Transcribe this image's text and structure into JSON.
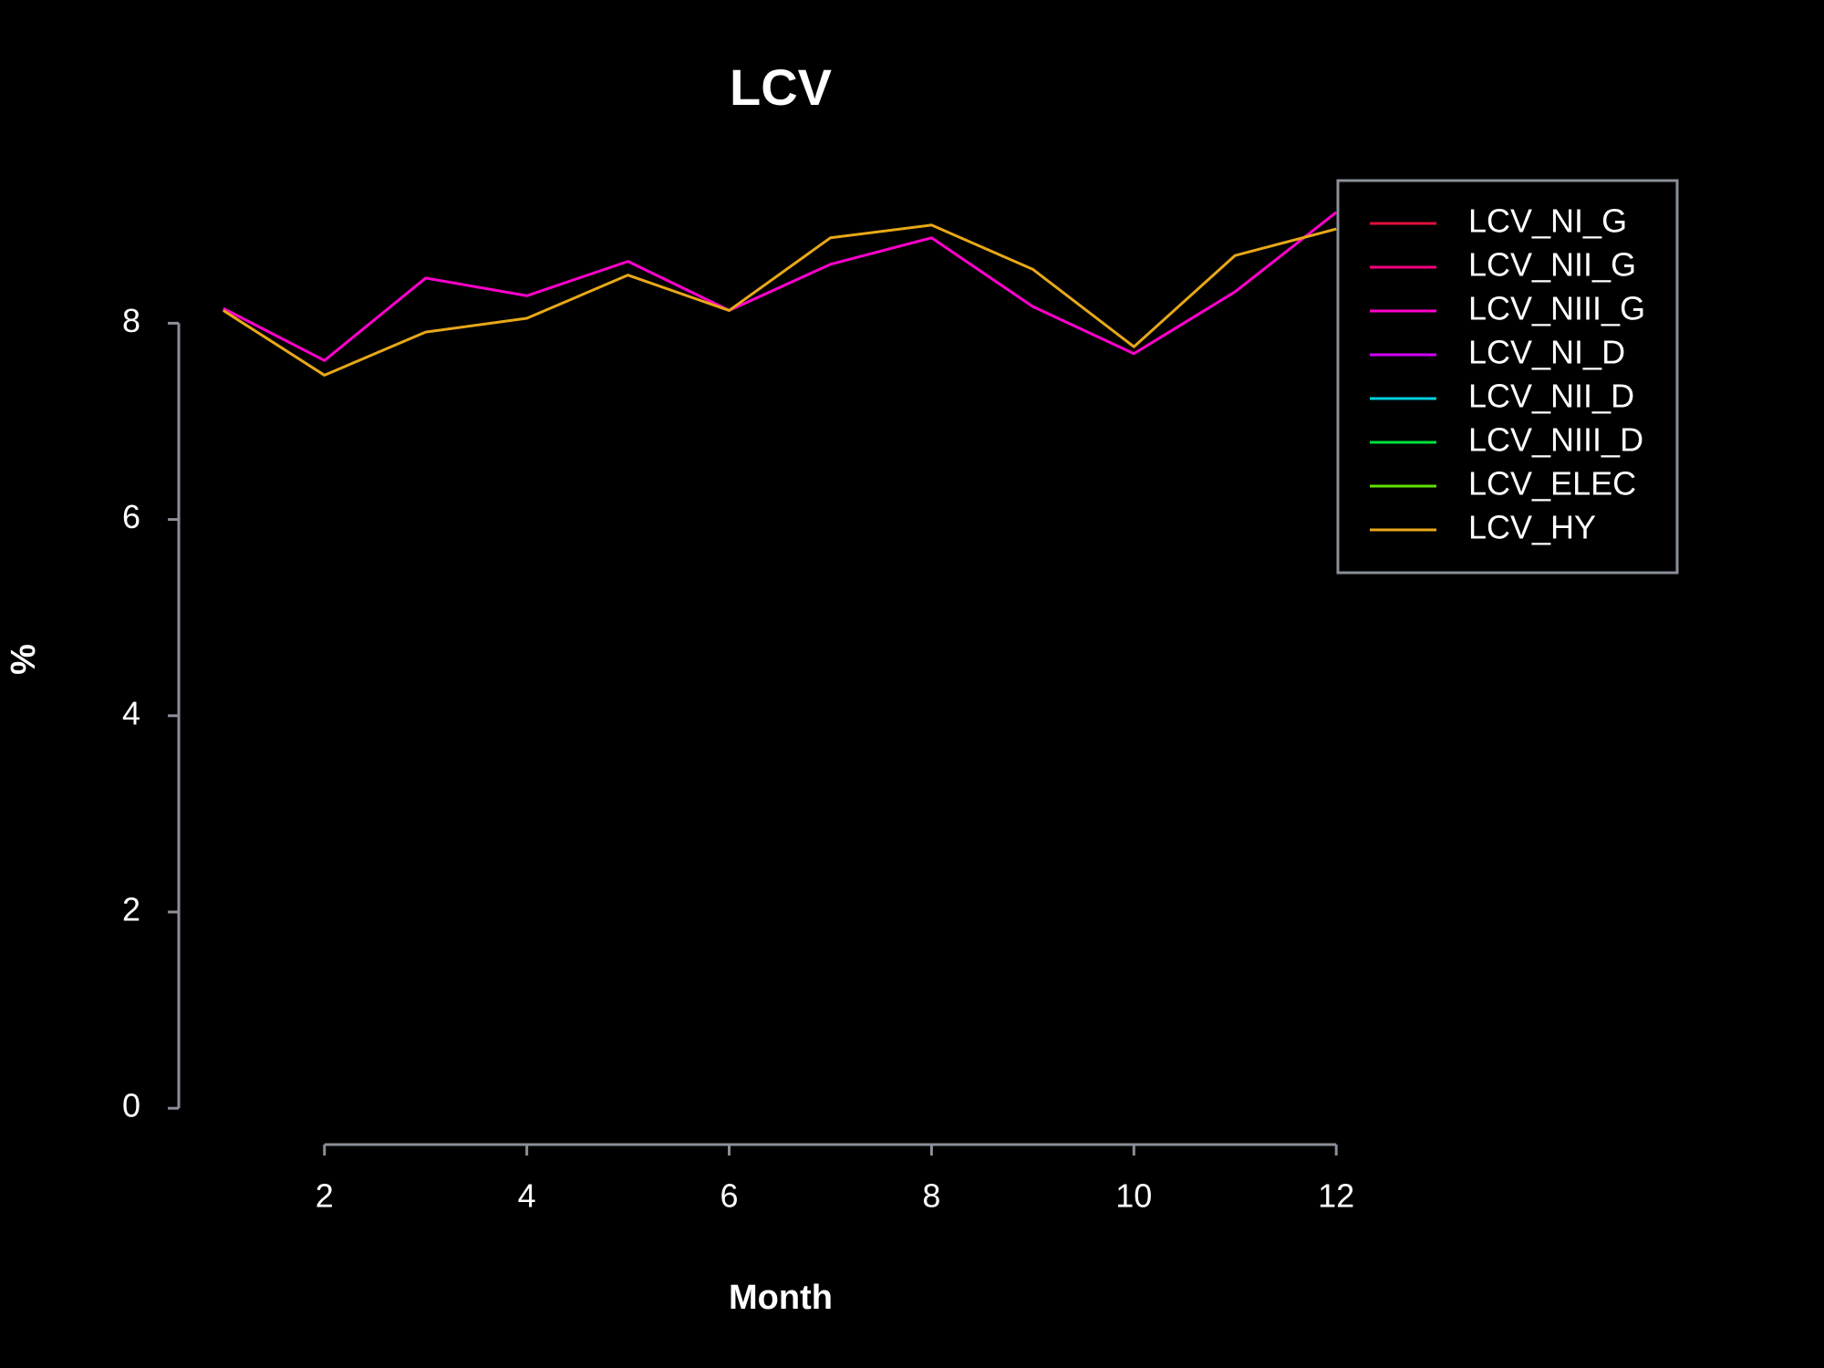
{
  "chart_data": {
    "type": "line",
    "title": "LCV",
    "x_label": "Month",
    "y_label": "%",
    "x": [
      1,
      2,
      3,
      4,
      5,
      6,
      7,
      8,
      9,
      10,
      11,
      12
    ],
    "xlim": [
      0.56,
      12.44
    ],
    "xticks": [
      2,
      4,
      6,
      8,
      10,
      12
    ],
    "ylim": [
      -0.37,
      9.5
    ],
    "yticks": [
      0,
      2,
      4,
      6,
      8
    ],
    "legend": "top-right",
    "series": [
      {
        "name": "LCV_NI_G",
        "color": "#e0103c",
        "values": [
          null,
          null,
          null,
          null,
          null,
          null,
          null,
          null,
          null,
          null,
          null,
          null
        ]
      },
      {
        "name": "LCV_NII_G",
        "color": "#ff0080",
        "values": [
          null,
          null,
          null,
          null,
          null,
          null,
          null,
          null,
          null,
          null,
          null,
          null
        ]
      },
      {
        "name": "LCV_NIII_G",
        "color": "#ff00cc",
        "values": [
          8.15,
          7.62,
          8.46,
          8.28,
          8.63,
          8.13,
          8.6,
          8.87,
          8.17,
          7.69,
          8.32,
          9.13
        ]
      },
      {
        "name": "LCV_NI_D",
        "color": "#d000ff",
        "values": [
          null,
          null,
          null,
          null,
          null,
          null,
          null,
          null,
          null,
          null,
          null,
          null
        ]
      },
      {
        "name": "LCV_NII_D",
        "color": "#00d0e0",
        "values": [
          null,
          null,
          null,
          null,
          null,
          null,
          null,
          null,
          null,
          null,
          null,
          null
        ]
      },
      {
        "name": "LCV_NIII_D",
        "color": "#00e040",
        "values": [
          null,
          null,
          null,
          null,
          null,
          null,
          null,
          null,
          null,
          null,
          null,
          null
        ]
      },
      {
        "name": "LCV_ELEC",
        "color": "#60e000",
        "values": [
          null,
          null,
          null,
          null,
          null,
          null,
          null,
          null,
          null,
          null,
          null,
          null
        ]
      },
      {
        "name": "LCV_HY",
        "color": "#e8a818",
        "values": [
          8.13,
          7.47,
          7.91,
          8.05,
          8.49,
          8.13,
          8.87,
          9.0,
          8.55,
          7.76,
          8.69,
          8.96
        ]
      }
    ]
  }
}
